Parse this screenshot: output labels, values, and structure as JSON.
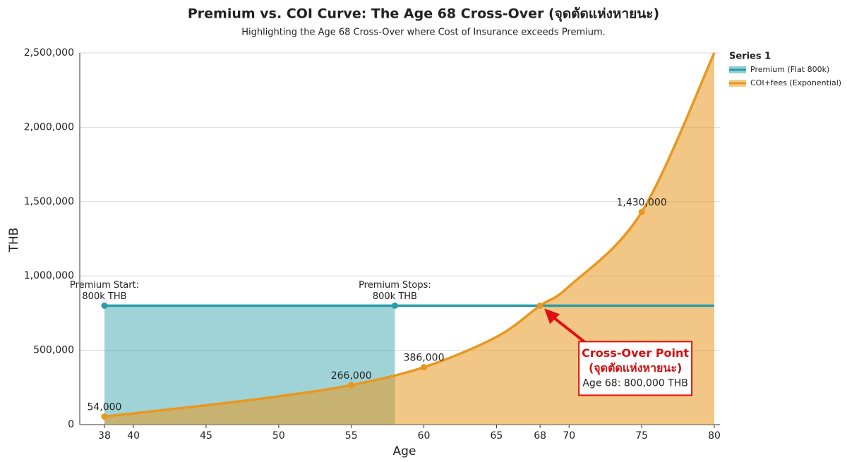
{
  "chart_data": {
    "type": "line",
    "title": "Premium vs. COI Curve: The Age 68 Cross-Over (จุดตัดแห่งหายนะ)",
    "subtitle": "Highlighting the Age 68 Cross-Over where Cost of Insurance exceeds Premium.",
    "x_label": "Age",
    "y_label": "THB",
    "legend_title": "Series 1",
    "legend_position": "upper right",
    "grid": true,
    "xlim": [
      36.3,
      80
    ],
    "xticks": [
      38,
      40,
      45,
      50,
      55,
      60,
      65,
      68,
      70,
      75,
      80
    ],
    "ylim": [
      0,
      2500000
    ],
    "yticks": [
      0,
      {
        "value": 500000,
        "label": "500,000"
      },
      {
        "value": 1000000,
        "label": "1,000,000"
      },
      {
        "value": 1500000,
        "label": "1,500,000"
      },
      {
        "value": 2000000,
        "label": "2,000,000"
      },
      {
        "value": 2500000,
        "label": "2,500,000"
      }
    ],
    "series": [
      {
        "name": "Premium (Flat 800k)",
        "color": "#2a9da8",
        "x": [
          38,
          58,
          80
        ],
        "values": [
          800000,
          800000,
          800000
        ]
      },
      {
        "name": "COI+fees (Exponential)",
        "color": "#e8971f",
        "x": [
          38,
          45,
          50,
          55,
          60,
          65,
          68,
          70,
          75,
          80
        ],
        "values": [
          54000,
          130000,
          190000,
          266000,
          386000,
          590000,
          800000,
          930000,
          1430000,
          2500000
        ],
        "value_labels": [
          "54,000",
          null,
          null,
          "266,000",
          "386,000",
          null,
          null,
          null,
          "1,430,000",
          null
        ]
      }
    ],
    "annotations": [
      {
        "lines": [
          "Premium Start:",
          "800k THB"
        ]
      },
      {
        "lines": [
          "Premium Stops:",
          "800k THB"
        ]
      },
      {
        "lines": [
          "Cross-Over Point",
          "(จุดตัดแห่งหายนะ)",
          "Age 68: 800,000 THB"
        ]
      }
    ]
  }
}
